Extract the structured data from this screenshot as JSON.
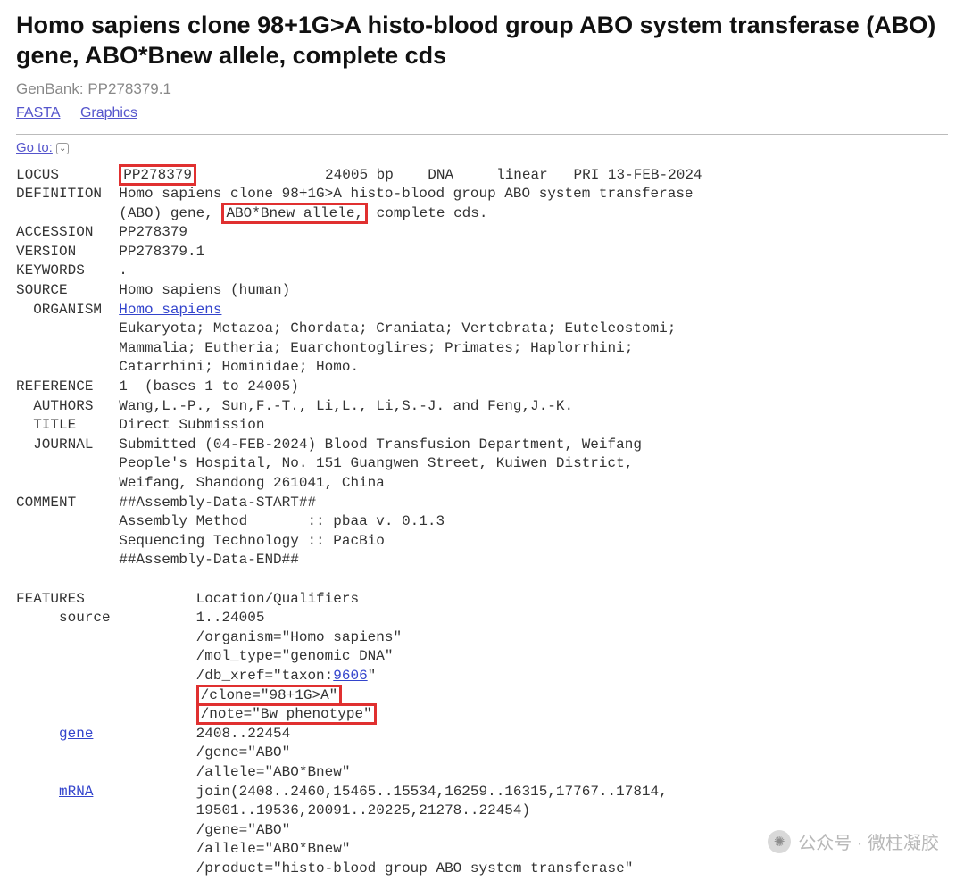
{
  "header": {
    "title": "Homo sapiens clone 98+1G>A histo-blood group ABO system transferase (ABO) gene, ABO*Bnew allele, complete cds",
    "accession_label": "GenBank: PP278379.1",
    "links": {
      "fasta": "FASTA",
      "graphics": "Graphics"
    },
    "goto_label": "Go to:"
  },
  "highlight": {
    "locus_id": "PP278379",
    "allele_text": "ABO*Bnew allele,",
    "clone_line": "/clone=\"98+1G>A\"",
    "note_line": "/note=\"Bw phenotype\""
  },
  "flat": {
    "locus_rest": "               24005 bp    DNA     linear   PRI 13-FEB-2024",
    "def_l1": "DEFINITION  Homo sapiens clone 98+1G>A histo-blood group ABO system transferase",
    "def_l2_pre": "            (ABO) gene, ",
    "def_l2_post": " complete cds.",
    "accession": "ACCESSION   PP278379",
    "version": "VERSION     PP278379.1",
    "keywords": "KEYWORDS    .",
    "source": "SOURCE      Homo sapiens (human)",
    "organism_label": "  ORGANISM  ",
    "organism_link": "Homo sapiens",
    "lineage1": "            Eukaryota; Metazoa; Chordata; Craniata; Vertebrata; Euteleostomi;",
    "lineage2": "            Mammalia; Eutheria; Euarchontoglires; Primates; Haplorrhini;",
    "lineage3": "            Catarrhini; Hominidae; Homo.",
    "reference": "REFERENCE   1  (bases 1 to 24005)",
    "authors": "  AUTHORS   Wang,L.-P., Sun,F.-T., Li,L., Li,S.-J. and Feng,J.-K.",
    "title": "  TITLE     Direct Submission",
    "journal1": "  JOURNAL   Submitted (04-FEB-2024) Blood Transfusion Department, Weifang",
    "journal2": "            People's Hospital, No. 151 Guangwen Street, Kuiwen District,",
    "journal3": "            Weifang, Shandong 261041, China",
    "comment1": "COMMENT     ##Assembly-Data-START##",
    "comment2": "            Assembly Method       :: pbaa v. 0.1.3",
    "comment3": "            Sequencing Technology :: PacBio",
    "comment4": "            ##Assembly-Data-END##",
    "features": "FEATURES             Location/Qualifiers",
    "src_loc": "     source          1..24005",
    "src_org": "                     /organism=\"Homo sapiens\"",
    "src_mol": "                     /mol_type=\"genomic DNA\"",
    "src_xref_pre": "                     /db_xref=\"taxon:",
    "src_xref_link": "9606",
    "src_xref_post": "\"",
    "indent21": "                     ",
    "gene_label_indent": "     ",
    "gene_link": "gene",
    "gene_loc_rest": "            2408..22454",
    "gene_gene": "                     /gene=\"ABO\"",
    "gene_allele": "                     /allele=\"ABO*Bnew\"",
    "mrna_link": "mRNA",
    "mrna_loc_rest": "            join(2408..2460,15465..15534,16259..16315,17767..17814,",
    "mrna_loc2": "                     19501..19536,20091..20225,21278..22454)",
    "mrna_gene": "                     /gene=\"ABO\"",
    "mrna_allele": "                     /allele=\"ABO*Bnew\"",
    "mrna_product": "                     /product=\"histo-blood group ABO system transferase\""
  },
  "watermark": {
    "text": "公众号 · 微柱凝胶"
  }
}
